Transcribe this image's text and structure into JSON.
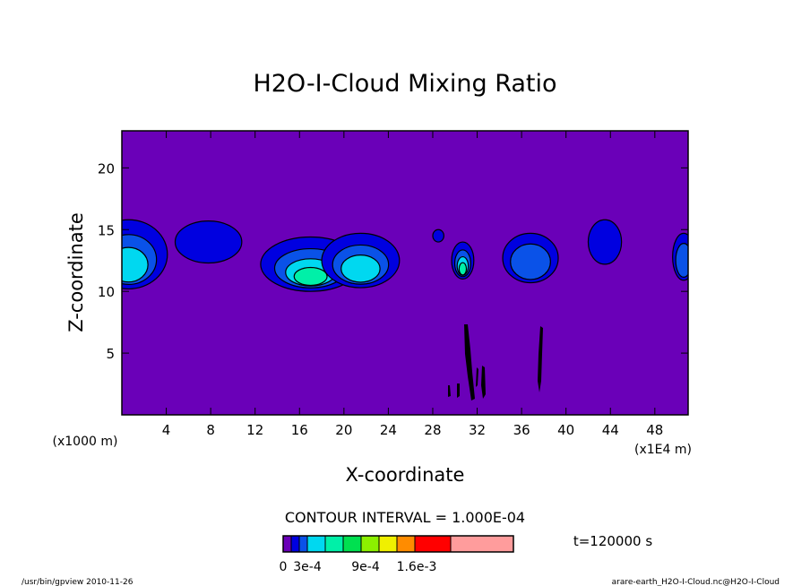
{
  "chart_data": {
    "type": "heatmap",
    "title": "H2O-I-Cloud Mixing Ratio",
    "xlabel": "X-coordinate",
    "ylabel": "Z-coordinate",
    "x_unit_left": "(x1000 m)",
    "x_unit_right": "(x1E4 m)",
    "xlim": [
      0,
      51
    ],
    "ylim": [
      0,
      23
    ],
    "x_ticks": [
      4,
      8,
      12,
      16,
      20,
      24,
      28,
      32,
      36,
      40,
      44,
      48
    ],
    "y_ticks": [
      5,
      10,
      15,
      20
    ],
    "contour_interval": "CONTOUR INTERVAL = 1.000E-04",
    "time_label": "t=120000 s",
    "colorbar": {
      "tick_labels": [
        "0",
        "3e-4",
        "9e-4",
        "1.6e-3"
      ],
      "levels": [
        {
          "color": "#6a00b8"
        },
        {
          "color": "#0000e0"
        },
        {
          "color": "#0a52e8"
        },
        {
          "color": "#00d8f0"
        },
        {
          "color": "#00f0a8"
        },
        {
          "color": "#00e050"
        },
        {
          "color": "#8cf000"
        },
        {
          "color": "#f0f000"
        },
        {
          "color": "#ff8c00"
        },
        {
          "color": "#ff0000"
        },
        {
          "color": "#ff9c9c"
        }
      ]
    },
    "background_color": "#6a00b8",
    "cloud_cells": [
      {
        "x": 0.6,
        "z": 13.0,
        "rx": 3.5,
        "rz": 2.8,
        "peak_level": 3
      },
      {
        "x": 7.8,
        "z": 14.0,
        "rx": 3.0,
        "rz": 1.7,
        "peak_level": 1
      },
      {
        "x": 17.0,
        "z": 12.2,
        "rx": 4.5,
        "rz": 2.2,
        "peak_level": 4
      },
      {
        "x": 21.5,
        "z": 12.5,
        "rx": 3.5,
        "rz": 2.2,
        "peak_level": 3
      },
      {
        "x": 28.5,
        "z": 14.5,
        "rx": 0.5,
        "rz": 0.5,
        "peak_level": 1
      },
      {
        "x": 30.7,
        "z": 12.5,
        "rx": 1.0,
        "rz": 1.5,
        "peak_level": 4
      },
      {
        "x": 36.8,
        "z": 12.7,
        "rx": 2.5,
        "rz": 2.0,
        "peak_level": 2
      },
      {
        "x": 43.5,
        "z": 14.0,
        "rx": 1.5,
        "rz": 1.8,
        "peak_level": 1
      },
      {
        "x": 50.6,
        "z": 12.8,
        "rx": 1.0,
        "rz": 1.9,
        "peak_level": 2
      }
    ]
  },
  "footer": {
    "left": "/usr/bin/gpview  2010-11-26",
    "right": "arare-earth_H2O-I-Cloud.nc@H2O-I-Cloud"
  }
}
